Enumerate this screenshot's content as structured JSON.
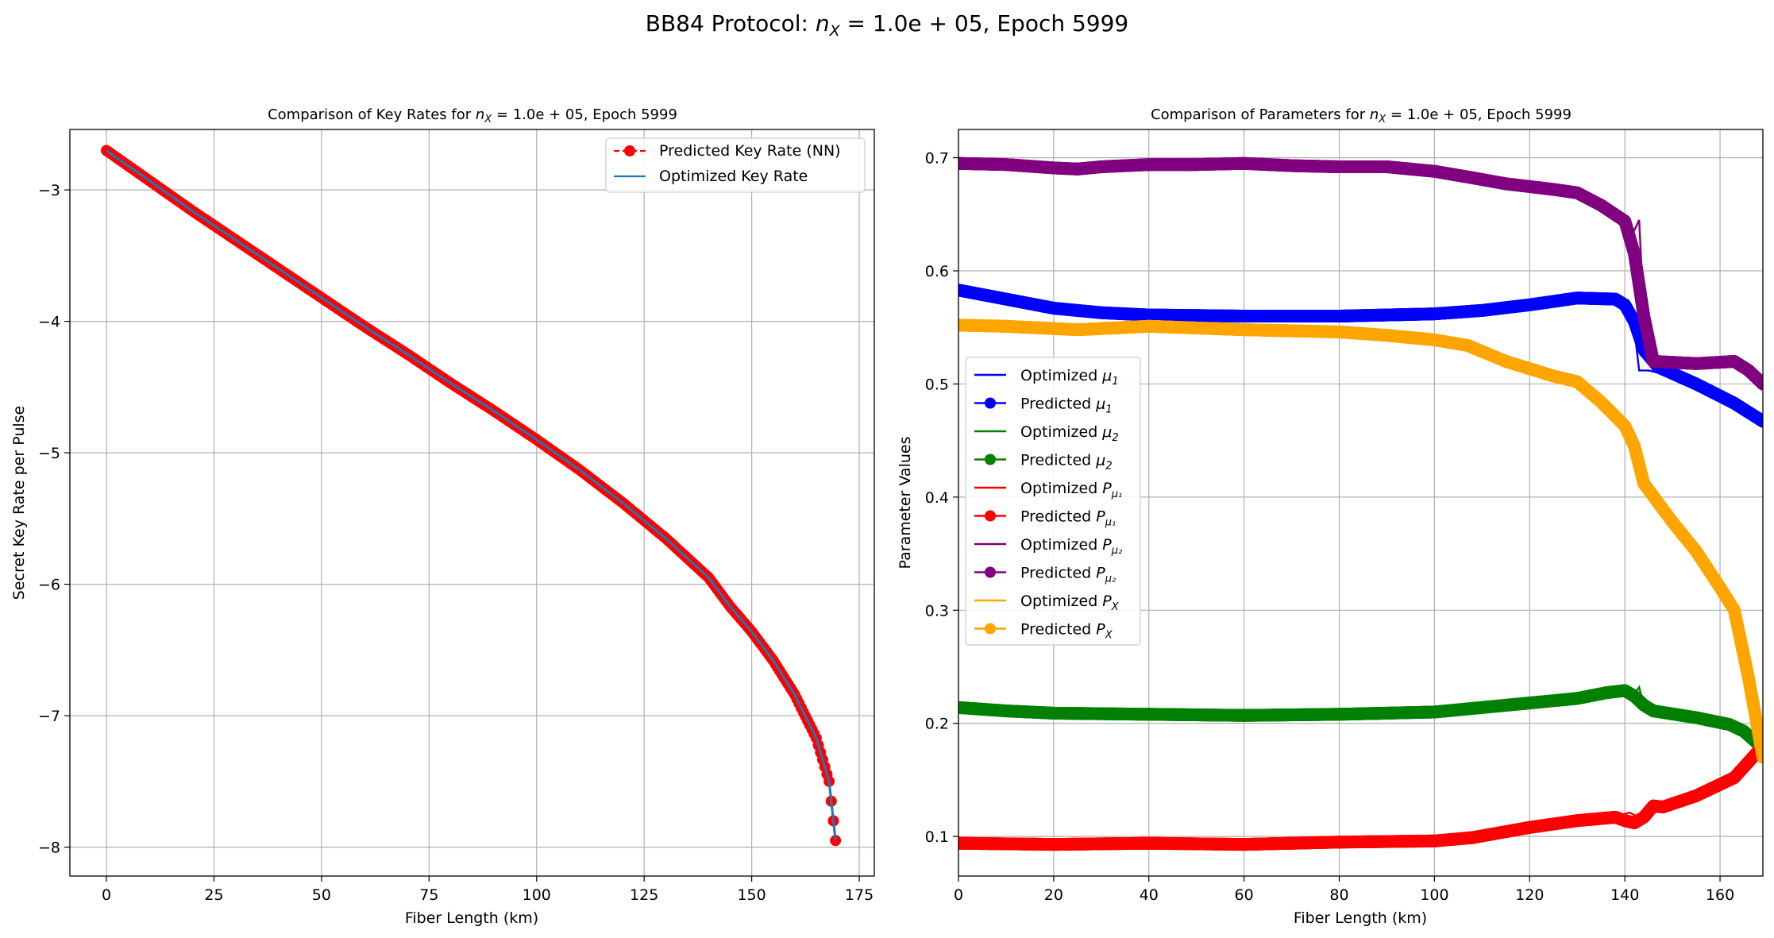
{
  "figure": {
    "suptitle_prefix": "BB84 Protocol: ",
    "suptitle_math": "n",
    "suptitle_sub": "X",
    "suptitle_suffix": " = 1.0e + 05, Epoch 5999"
  },
  "chart_data": [
    {
      "type": "line",
      "title_prefix": "Comparison of Key Rates for ",
      "title_math": "n",
      "title_sub": "X",
      "title_suffix": " = 1.0e + 05, Epoch 5999",
      "xlabel": "Fiber Length (km)",
      "ylabel": "Secret Key Rate per Pulse",
      "xlim": [
        -8.5,
        178.5
      ],
      "ylim": [
        -8.22,
        -2.54
      ],
      "xticks": [
        0,
        25,
        50,
        75,
        100,
        125,
        150,
        175
      ],
      "yticks": [
        -8,
        -7,
        -6,
        -5,
        -4,
        -3
      ],
      "grid": true,
      "legend_position": "upper right",
      "x": [
        0,
        10,
        20,
        30,
        40,
        50,
        60,
        70,
        80,
        90,
        100,
        110,
        120,
        130,
        140,
        145,
        150,
        155,
        160,
        165,
        168,
        169.5
      ],
      "series": [
        {
          "name": "Predicted Key Rate (NN)",
          "color": "#ff0000",
          "style": "dashed-marker",
          "values": [
            -2.7,
            -2.93,
            -3.16,
            -3.38,
            -3.6,
            -3.82,
            -4.04,
            -4.25,
            -4.47,
            -4.68,
            -4.9,
            -5.13,
            -5.38,
            -5.65,
            -5.95,
            -6.17,
            -6.36,
            -6.58,
            -6.84,
            -7.17,
            -7.5,
            -7.95
          ]
        },
        {
          "name": "Optimized Key Rate",
          "color": "#1f77b4",
          "style": "line",
          "values": [
            -2.7,
            -2.93,
            -3.16,
            -3.38,
            -3.6,
            -3.82,
            -4.04,
            -4.25,
            -4.47,
            -4.68,
            -4.9,
            -5.13,
            -5.38,
            -5.65,
            -5.95,
            -6.17,
            -6.36,
            -6.58,
            -6.84,
            -7.17,
            -7.5,
            -7.95
          ]
        }
      ]
    },
    {
      "type": "line",
      "title_prefix": "Comparison of Parameters for ",
      "title_math": "n",
      "title_sub": "X",
      "title_suffix": " = 1.0e + 05, Epoch 5999",
      "xlabel": "Fiber Length (km)",
      "ylabel": "Parameter Values",
      "xlim": [
        0,
        169
      ],
      "ylim": [
        0.065,
        0.725
      ],
      "xticks": [
        0,
        20,
        40,
        60,
        80,
        100,
        120,
        140,
        160
      ],
      "yticks": [
        0.1,
        0.2,
        0.3,
        0.4,
        0.5,
        0.6,
        0.7
      ],
      "grid": true,
      "legend_position": "center left",
      "legend": [
        {
          "prefix": "Optimized ",
          "sym": "μ",
          "sub": "1",
          "color": "#0000ff",
          "marker": false
        },
        {
          "prefix": "Predicted ",
          "sym": "μ",
          "sub": "1",
          "color": "#0000ff",
          "marker": true
        },
        {
          "prefix": "Optimized ",
          "sym": "μ",
          "sub": "2",
          "color": "#008000",
          "marker": false
        },
        {
          "prefix": "Predicted ",
          "sym": "μ",
          "sub": "2",
          "color": "#008000",
          "marker": true
        },
        {
          "prefix": "Optimized ",
          "sym": "P",
          "sub": "μ₁",
          "color": "#ff0000",
          "marker": false
        },
        {
          "prefix": "Predicted ",
          "sym": "P",
          "sub": "μ₁",
          "color": "#ff0000",
          "marker": true
        },
        {
          "prefix": "Optimized ",
          "sym": "P",
          "sub": "μ₂",
          "color": "#800080",
          "marker": false
        },
        {
          "prefix": "Predicted ",
          "sym": "P",
          "sub": "μ₂",
          "color": "#800080",
          "marker": true
        },
        {
          "prefix": "Optimized ",
          "sym": "P",
          "sub": "X",
          "color": "#ffa500",
          "marker": false
        },
        {
          "prefix": "Predicted ",
          "sym": "P",
          "sub": "X",
          "color": "#ffa500",
          "marker": true
        }
      ],
      "series": [
        {
          "key": "mu1",
          "color": "#0000ff",
          "optimized": [
            [
              0,
              0.583
            ],
            [
              10,
              0.575
            ],
            [
              20,
              0.567
            ],
            [
              30,
              0.563
            ],
            [
              40,
              0.561
            ],
            [
              60,
              0.56
            ],
            [
              80,
              0.56
            ],
            [
              100,
              0.562
            ],
            [
              110,
              0.565
            ],
            [
              120,
              0.57
            ],
            [
              130,
              0.576
            ],
            [
              138,
              0.576
            ],
            [
              140,
              0.575
            ],
            [
              141,
              0.572
            ],
            [
              142,
              0.548
            ],
            [
              143,
              0.512
            ],
            [
              145,
              0.512
            ],
            [
              147,
              0.51
            ],
            [
              155,
              0.495
            ],
            [
              163,
              0.48
            ],
            [
              169,
              0.467
            ]
          ],
          "predicted": [
            [
              0,
              0.583
            ],
            [
              10,
              0.575
            ],
            [
              20,
              0.567
            ],
            [
              30,
              0.563
            ],
            [
              40,
              0.561
            ],
            [
              60,
              0.56
            ],
            [
              80,
              0.56
            ],
            [
              100,
              0.562
            ],
            [
              110,
              0.565
            ],
            [
              120,
              0.57
            ],
            [
              130,
              0.576
            ],
            [
              138,
              0.575
            ],
            [
              140,
              0.57
            ],
            [
              142,
              0.555
            ],
            [
              144,
              0.53
            ],
            [
              147,
              0.515
            ],
            [
              155,
              0.5
            ],
            [
              163,
              0.483
            ],
            [
              169,
              0.467
            ]
          ]
        },
        {
          "key": "mu2",
          "color": "#008000",
          "optimized": [
            [
              0,
              0.214
            ],
            [
              10,
              0.211
            ],
            [
              20,
              0.209
            ],
            [
              40,
              0.208
            ],
            [
              60,
              0.207
            ],
            [
              80,
              0.208
            ],
            [
              100,
              0.21
            ],
            [
              110,
              0.214
            ],
            [
              120,
              0.218
            ],
            [
              130,
              0.222
            ],
            [
              136,
              0.227
            ],
            [
              140,
              0.231
            ],
            [
              142,
              0.226
            ],
            [
              143,
              0.232
            ],
            [
              144,
              0.216
            ],
            [
              146,
              0.21
            ],
            [
              155,
              0.204
            ],
            [
              162,
              0.199
            ],
            [
              164,
              0.195
            ],
            [
              169,
              0.176
            ]
          ],
          "predicted": [
            [
              0,
              0.214
            ],
            [
              10,
              0.211
            ],
            [
              20,
              0.209
            ],
            [
              40,
              0.208
            ],
            [
              60,
              0.207
            ],
            [
              80,
              0.208
            ],
            [
              100,
              0.21
            ],
            [
              110,
              0.214
            ],
            [
              120,
              0.218
            ],
            [
              130,
              0.222
            ],
            [
              136,
              0.227
            ],
            [
              140,
              0.229
            ],
            [
              142,
              0.224
            ],
            [
              144,
              0.216
            ],
            [
              146,
              0.211
            ],
            [
              155,
              0.205
            ],
            [
              162,
              0.199
            ],
            [
              165,
              0.193
            ],
            [
              169,
              0.178
            ]
          ]
        },
        {
          "key": "pmu1",
          "color": "#ff0000",
          "optimized": [
            [
              0,
              0.094
            ],
            [
              20,
              0.093
            ],
            [
              40,
              0.094
            ],
            [
              60,
              0.093
            ],
            [
              80,
              0.095
            ],
            [
              100,
              0.096
            ],
            [
              108,
              0.099
            ],
            [
              120,
              0.108
            ],
            [
              130,
              0.114
            ],
            [
              138,
              0.117
            ],
            [
              140,
              0.12
            ],
            [
              141,
              0.121
            ],
            [
              142,
              0.119
            ],
            [
              143,
              0.117
            ],
            [
              144,
              0.12
            ],
            [
              146,
              0.128
            ],
            [
              148,
              0.126
            ],
            [
              155,
              0.135
            ],
            [
              163,
              0.152
            ],
            [
              166,
              0.165
            ],
            [
              169,
              0.18
            ]
          ],
          "predicted": [
            [
              0,
              0.094
            ],
            [
              20,
              0.093
            ],
            [
              40,
              0.094
            ],
            [
              60,
              0.093
            ],
            [
              80,
              0.095
            ],
            [
              100,
              0.096
            ],
            [
              108,
              0.099
            ],
            [
              120,
              0.108
            ],
            [
              130,
              0.114
            ],
            [
              138,
              0.117
            ],
            [
              140,
              0.114
            ],
            [
              142,
              0.112
            ],
            [
              144,
              0.117
            ],
            [
              146,
              0.127
            ],
            [
              148,
              0.126
            ],
            [
              155,
              0.136
            ],
            [
              163,
              0.152
            ],
            [
              166,
              0.166
            ],
            [
              169,
              0.18
            ]
          ]
        },
        {
          "key": "pmu2",
          "color": "#800080",
          "optimized": [
            [
              0,
              0.695
            ],
            [
              10,
              0.694
            ],
            [
              20,
              0.691
            ],
            [
              25,
              0.69
            ],
            [
              30,
              0.692
            ],
            [
              40,
              0.694
            ],
            [
              50,
              0.694
            ],
            [
              60,
              0.695
            ],
            [
              70,
              0.693
            ],
            [
              80,
              0.692
            ],
            [
              90,
              0.692
            ],
            [
              100,
              0.688
            ],
            [
              107,
              0.683
            ],
            [
              115,
              0.677
            ],
            [
              125,
              0.672
            ],
            [
              130,
              0.669
            ],
            [
              135,
              0.659
            ],
            [
              140,
              0.645
            ],
            [
              142,
              0.636
            ],
            [
              143,
              0.645
            ],
            [
              144,
              0.56
            ],
            [
              145,
              0.54
            ],
            [
              147,
              0.518
            ],
            [
              155,
              0.518
            ],
            [
              163,
              0.52
            ],
            [
              166,
              0.512
            ],
            [
              169,
              0.5
            ]
          ],
          "predicted": [
            [
              0,
              0.695
            ],
            [
              10,
              0.694
            ],
            [
              20,
              0.691
            ],
            [
              25,
              0.69
            ],
            [
              30,
              0.692
            ],
            [
              40,
              0.694
            ],
            [
              50,
              0.694
            ],
            [
              60,
              0.695
            ],
            [
              70,
              0.693
            ],
            [
              80,
              0.692
            ],
            [
              90,
              0.692
            ],
            [
              100,
              0.688
            ],
            [
              107,
              0.683
            ],
            [
              115,
              0.677
            ],
            [
              125,
              0.672
            ],
            [
              130,
              0.669
            ],
            [
              135,
              0.658
            ],
            [
              140,
              0.644
            ],
            [
              142,
              0.615
            ],
            [
              144,
              0.56
            ],
            [
              146,
              0.52
            ],
            [
              155,
              0.518
            ],
            [
              163,
              0.52
            ],
            [
              166,
              0.512
            ],
            [
              169,
              0.5
            ]
          ]
        },
        {
          "key": "px",
          "color": "#ffa500",
          "optimized": [
            [
              0,
              0.552
            ],
            [
              10,
              0.551
            ],
            [
              25,
              0.548
            ],
            [
              40,
              0.551
            ],
            [
              60,
              0.548
            ],
            [
              80,
              0.546
            ],
            [
              90,
              0.543
            ],
            [
              100,
              0.539
            ],
            [
              107,
              0.534
            ],
            [
              115,
              0.52
            ],
            [
              125,
              0.507
            ],
            [
              130,
              0.502
            ],
            [
              135,
              0.484
            ],
            [
              140,
              0.463
            ],
            [
              142,
              0.446
            ],
            [
              143,
              0.416
            ],
            [
              144,
              0.41
            ],
            [
              150,
              0.378
            ],
            [
              155,
              0.352
            ],
            [
              160,
              0.32
            ],
            [
              163,
              0.3
            ],
            [
              166,
              0.24
            ],
            [
              169,
              0.17
            ]
          ],
          "predicted": [
            [
              0,
              0.552
            ],
            [
              10,
              0.551
            ],
            [
              25,
              0.548
            ],
            [
              40,
              0.551
            ],
            [
              60,
              0.548
            ],
            [
              80,
              0.546
            ],
            [
              90,
              0.543
            ],
            [
              100,
              0.539
            ],
            [
              107,
              0.534
            ],
            [
              115,
              0.52
            ],
            [
              125,
              0.507
            ],
            [
              130,
              0.502
            ],
            [
              135,
              0.484
            ],
            [
              140,
              0.463
            ],
            [
              142,
              0.445
            ],
            [
              144,
              0.412
            ],
            [
              150,
              0.378
            ],
            [
              155,
              0.352
            ],
            [
              160,
              0.32
            ],
            [
              163,
              0.3
            ],
            [
              166,
              0.24
            ],
            [
              169,
              0.17
            ]
          ]
        }
      ]
    }
  ]
}
